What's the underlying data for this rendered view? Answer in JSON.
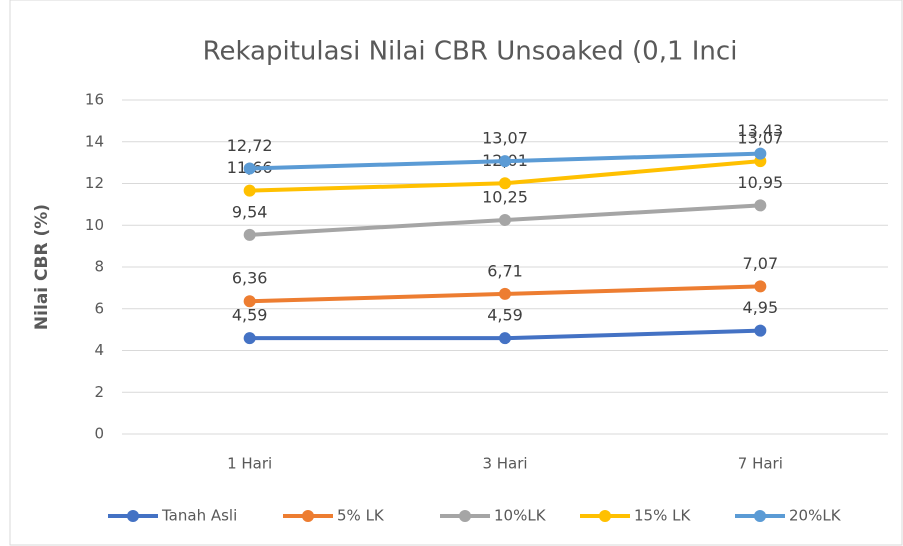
{
  "chart_data": {
    "type": "line",
    "title": "Rekapitulasi Nilai CBR Unsoaked (0,1 Inci",
    "y_label": "Nilai CBR (%)",
    "categories": [
      "1 Hari",
      "3 Hari",
      "7 Hari"
    ],
    "ylim": [
      0,
      16
    ],
    "yticks": [
      0,
      2,
      4,
      6,
      8,
      10,
      12,
      14,
      16
    ],
    "grid": true,
    "legend": "bottom",
    "series": [
      {
        "name": "Tanah Asli",
        "color": "#4472c4",
        "values": [
          4.59,
          4.59,
          4.95
        ],
        "value_labels": [
          "4,59",
          "4,59",
          "4,95"
        ]
      },
      {
        "name": "5% LK",
        "color": "#ed7d31",
        "values": [
          6.36,
          6.71,
          7.07
        ],
        "value_labels": [
          "6,36",
          "6,71",
          "7,07"
        ]
      },
      {
        "name": "10%LK",
        "color": "#a5a5a5",
        "values": [
          9.54,
          10.25,
          10.95
        ],
        "value_labels": [
          "9,54",
          "10,25",
          "10,95"
        ]
      },
      {
        "name": "15% LK",
        "color": "#ffc000",
        "values": [
          11.66,
          12.01,
          13.07
        ],
        "value_labels": [
          "11,66",
          "12,01",
          "13,07"
        ]
      },
      {
        "name": "20%LK",
        "color": "#5b9bd5",
        "values": [
          12.72,
          13.07,
          13.43
        ],
        "value_labels": [
          "12,72",
          "13,07",
          "13,43"
        ]
      }
    ]
  }
}
